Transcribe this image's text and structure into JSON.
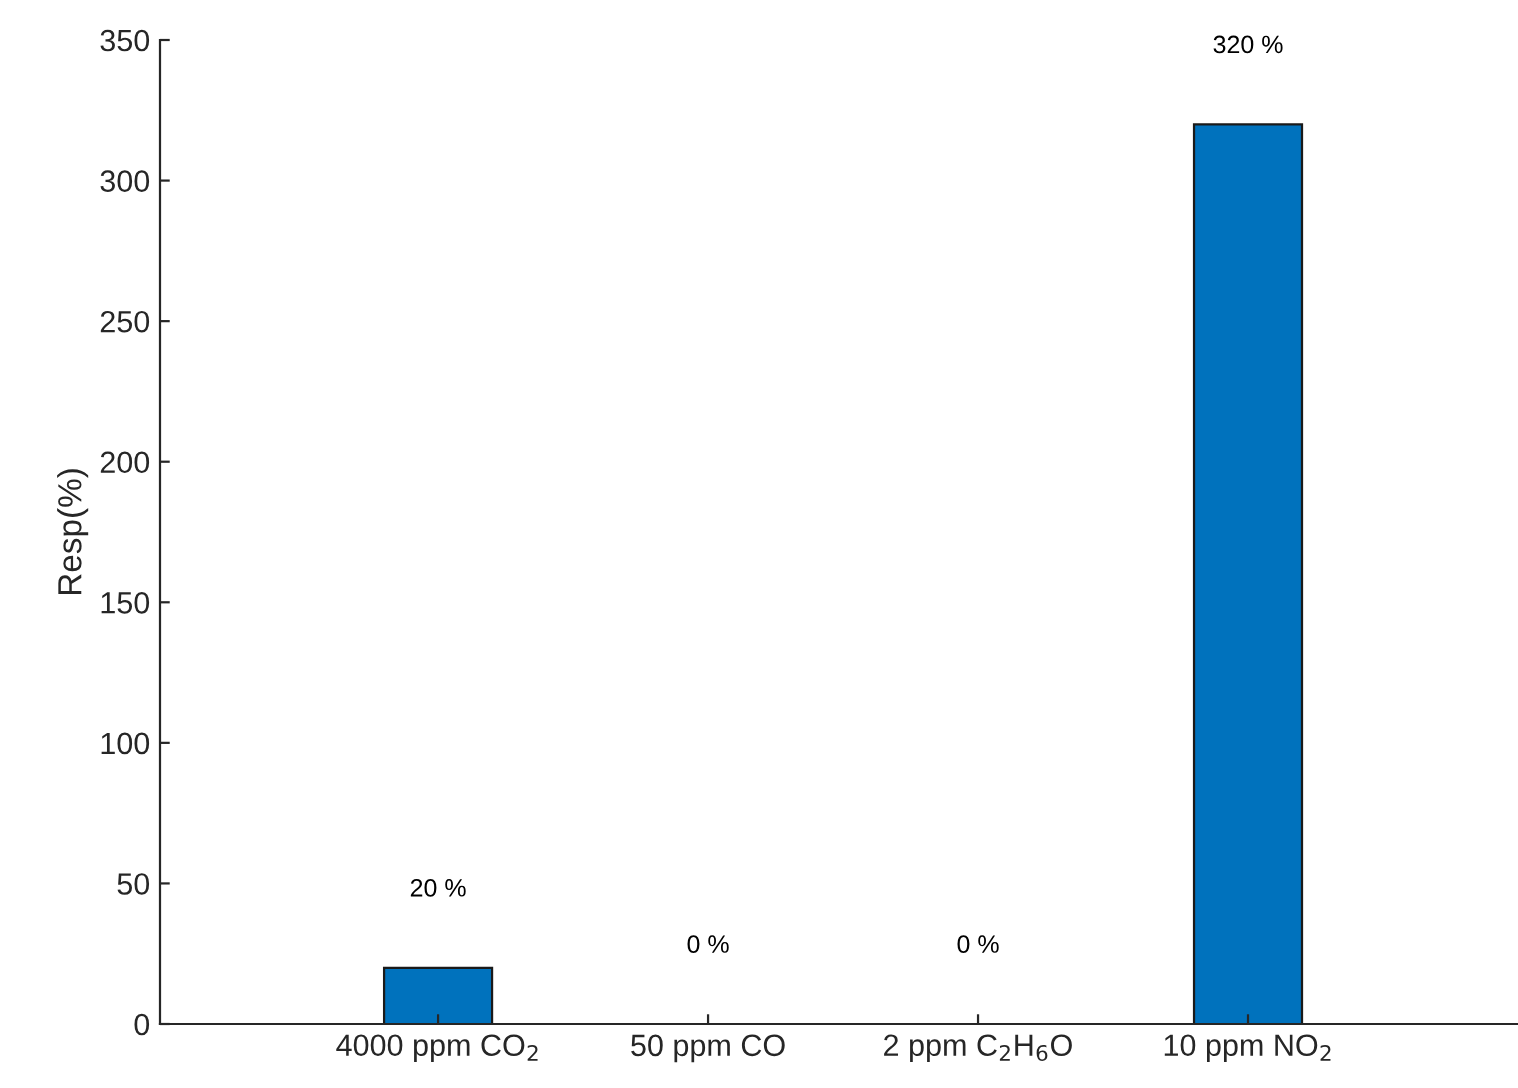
{
  "chart_data": {
    "type": "bar",
    "ylabel": "Resp(%)",
    "categories": [
      "4000 ppm CO$_{2}$",
      "50 ppm CO",
      "2 ppm C$_{2}$H$_{6}$O",
      "10 ppm NO$_{2}$"
    ],
    "values": [
      20,
      0,
      0,
      320
    ],
    "value_labels": [
      "20 %",
      "0 %",
      "0 %",
      "320 %"
    ],
    "color": "#0072bd",
    "ylim": [
      0,
      350
    ],
    "yticks": [
      0,
      50,
      100,
      150,
      200,
      250,
      300,
      350
    ],
    "grid": false,
    "legend": false
  }
}
